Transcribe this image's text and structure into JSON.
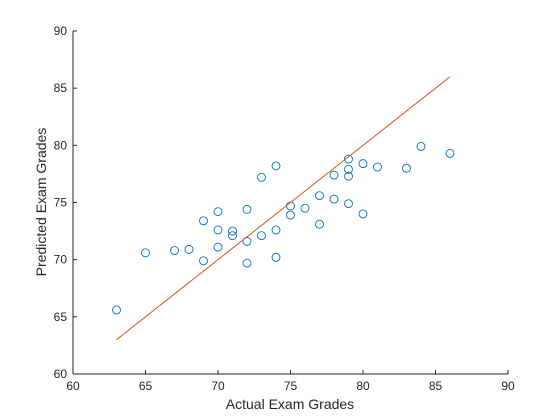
{
  "chart_data": {
    "type": "scatter",
    "title": "",
    "xlabel": "Actual Exam Grades",
    "ylabel": "Predicted Exam Grades",
    "xlim": [
      60,
      90
    ],
    "ylim": [
      60,
      90
    ],
    "xticks": [
      60,
      65,
      70,
      75,
      80,
      85,
      90
    ],
    "yticks": [
      60,
      65,
      70,
      75,
      80,
      85,
      90
    ],
    "grid": false,
    "marker_color": "#0072BD",
    "line_color": "#D95319",
    "series": [
      {
        "kind": "scatter",
        "x": [
          63,
          65,
          67,
          68,
          69,
          69,
          70,
          70,
          70,
          71,
          71,
          72,
          72,
          72,
          73,
          73,
          74,
          74,
          74,
          75,
          75,
          76,
          77,
          77,
          78,
          78,
          79,
          79,
          79,
          79,
          80,
          80,
          81,
          83,
          84,
          86
        ],
        "y": [
          65.6,
          70.6,
          70.8,
          70.9,
          69.9,
          73.4,
          71.1,
          72.6,
          74.2,
          72.1,
          72.5,
          69.7,
          71.6,
          74.4,
          72.1,
          77.2,
          70.2,
          72.6,
          78.2,
          73.9,
          74.7,
          74.5,
          73.1,
          75.6,
          75.3,
          77.4,
          74.9,
          77.3,
          77.9,
          78.8,
          74.0,
          78.4,
          78.1,
          78.0,
          79.9,
          79.3
        ]
      },
      {
        "kind": "line",
        "x": [
          63,
          86
        ],
        "y": [
          63,
          86
        ]
      }
    ]
  }
}
